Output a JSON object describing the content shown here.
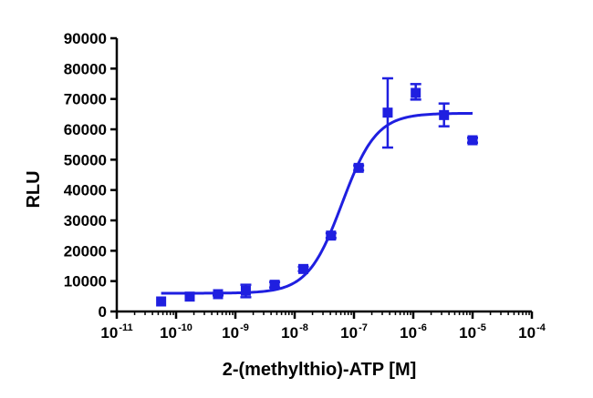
{
  "chart_data": {
    "type": "scatter",
    "xlabel": "2-(methylthio)-ATP [M]",
    "ylabel": "RLU",
    "xscale": "log10",
    "xlim": [
      1e-11,
      0.0001
    ],
    "ylim": [
      0,
      90000
    ],
    "xticks": [
      {
        "base": "10",
        "exp": "-11",
        "value": 1e-11
      },
      {
        "base": "10",
        "exp": "-10",
        "value": 1e-10
      },
      {
        "base": "10",
        "exp": "-9",
        "value": 1e-09
      },
      {
        "base": "10",
        "exp": "-8",
        "value": 1e-08
      },
      {
        "base": "10",
        "exp": "-7",
        "value": 1e-07
      },
      {
        "base": "10",
        "exp": "-6",
        "value": 1e-06
      },
      {
        "base": "10",
        "exp": "-5",
        "value": 1e-05
      },
      {
        "base": "10",
        "exp": "-4",
        "value": 0.0001
      }
    ],
    "yticks": [
      {
        "label": "0",
        "value": 0
      },
      {
        "label": "10000",
        "value": 10000
      },
      {
        "label": "20000",
        "value": 20000
      },
      {
        "label": "30000",
        "value": 30000
      },
      {
        "label": "40000",
        "value": 40000
      },
      {
        "label": "50000",
        "value": 50000
      },
      {
        "label": "60000",
        "value": 60000
      },
      {
        "label": "70000",
        "value": 70000
      },
      {
        "label": "80000",
        "value": 80000
      },
      {
        "label": "90000",
        "value": 90000
      }
    ],
    "color": "#1f1fe0",
    "grid": false,
    "series": [
      {
        "points": [
          {
            "x": 5.6e-11,
            "y": 3300,
            "yerr_low": 3300,
            "yerr_high": 3300
          },
          {
            "x": 1.7e-10,
            "y": 4900,
            "yerr_low": 4900,
            "yerr_high": 4900
          },
          {
            "x": 5.1e-10,
            "y": 5700,
            "yerr_low": 5300,
            "yerr_high": 6100
          },
          {
            "x": 1.5e-09,
            "y": 6800,
            "yerr_low": 4700,
            "yerr_high": 8800
          },
          {
            "x": 4.6e-09,
            "y": 8800,
            "yerr_low": 7900,
            "yerr_high": 9700
          },
          {
            "x": 1.4e-08,
            "y": 14000,
            "yerr_low": 13300,
            "yerr_high": 14700
          },
          {
            "x": 4.1e-08,
            "y": 25000,
            "yerr_low": 24200,
            "yerr_high": 25800
          },
          {
            "x": 1.2e-07,
            "y": 47300,
            "yerr_low": 46500,
            "yerr_high": 48100
          },
          {
            "x": 3.7e-07,
            "y": 65500,
            "yerr_low": 54000,
            "yerr_high": 76800
          },
          {
            "x": 1.1e-06,
            "y": 72000,
            "yerr_low": 69800,
            "yerr_high": 74900
          },
          {
            "x": 3.3e-06,
            "y": 64700,
            "yerr_low": 61000,
            "yerr_high": 68500
          },
          {
            "x": 1e-05,
            "y": 56400,
            "yerr_low": 55600,
            "yerr_high": 57200
          }
        ],
        "fit": {
          "bottom": 6000,
          "top": 65300,
          "log_ec50": -7.2,
          "hill": 1.5,
          "x_from": 5.6e-11,
          "x_to": 1e-05
        }
      }
    ]
  }
}
